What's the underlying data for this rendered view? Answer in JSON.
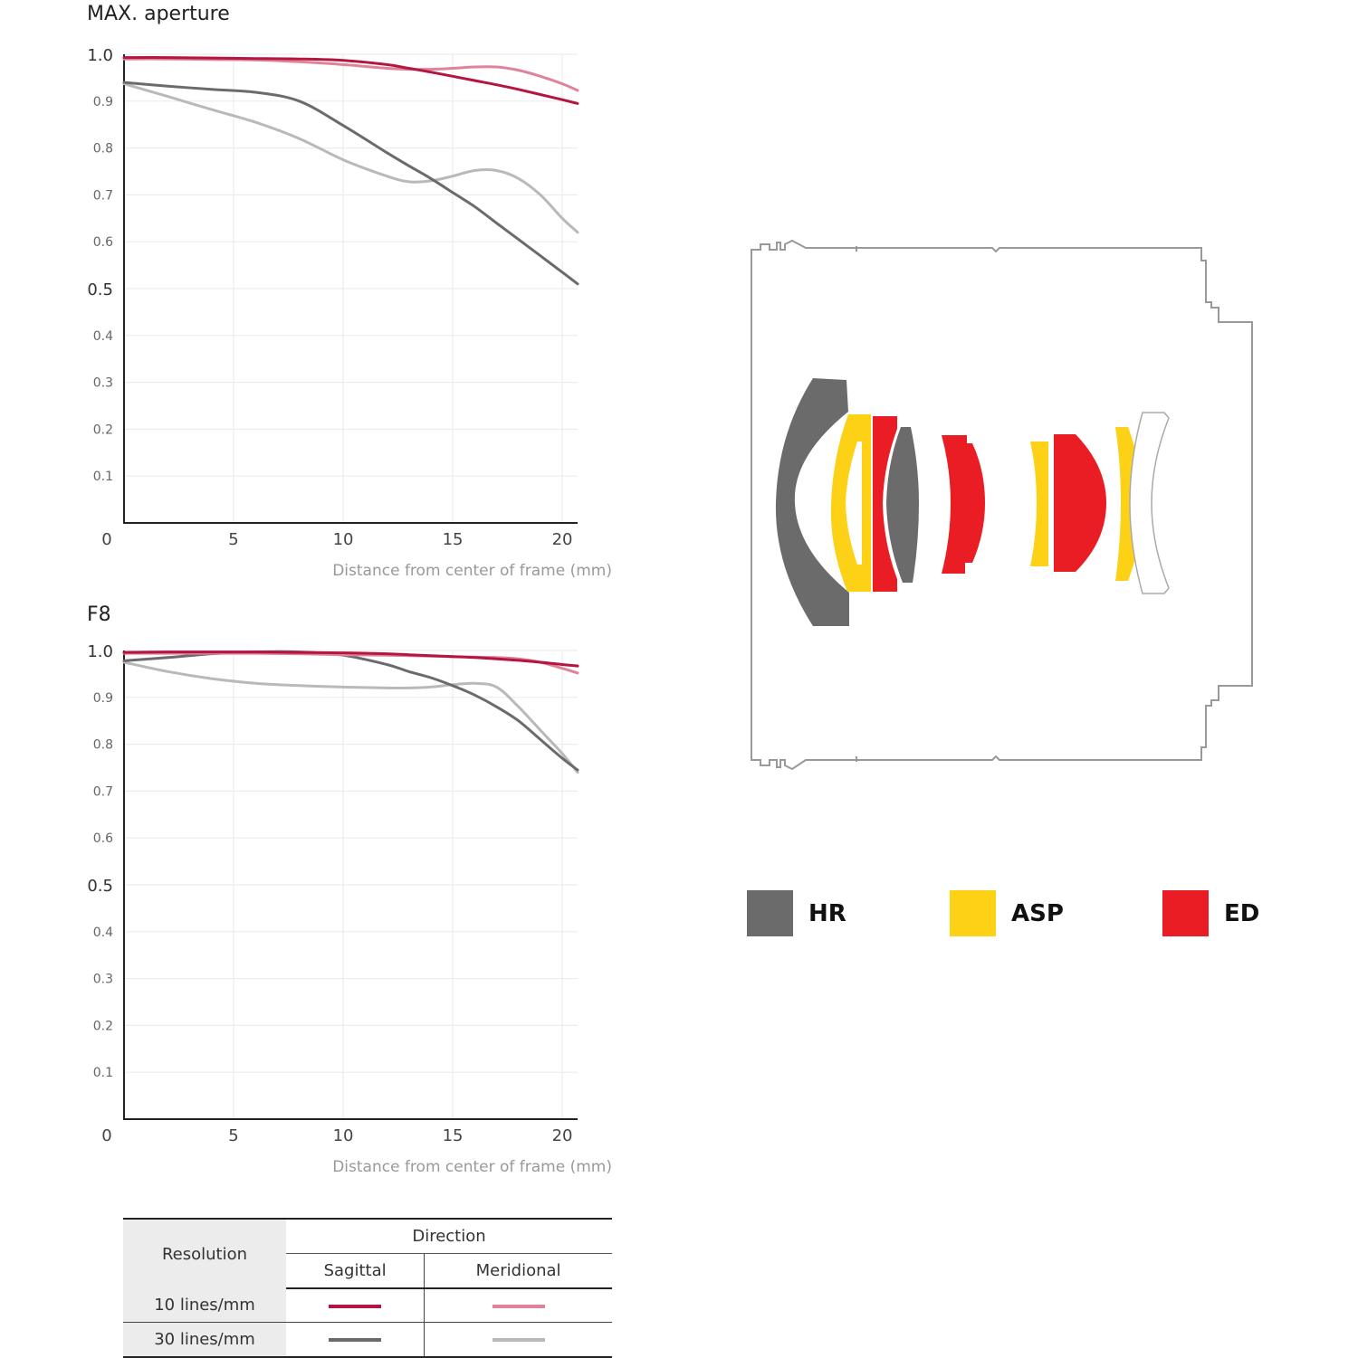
{
  "charts": [
    {
      "title": "MAX. aperture",
      "xlabel": "Distance from center of frame (mm)",
      "x_ticks": [
        "0",
        "5",
        "10",
        "15",
        "20"
      ],
      "y_ticks": [
        "0.1",
        "0.2",
        "0.3",
        "0.4",
        "0.5",
        "0.6",
        "0.7",
        "0.8",
        "0.9",
        "1.0"
      ]
    },
    {
      "title": "F8",
      "xlabel": "Distance from center of frame (mm)",
      "x_ticks": [
        "0",
        "5",
        "10",
        "15",
        "20"
      ],
      "y_ticks": [
        "0.1",
        "0.2",
        "0.3",
        "0.4",
        "0.5",
        "0.6",
        "0.7",
        "0.8",
        "0.9",
        "1.0"
      ]
    }
  ],
  "chart_data": [
    {
      "type": "line",
      "title": "MAX. aperture",
      "xlabel": "Distance from center of frame (mm)",
      "ylabel": "",
      "xlim": [
        0,
        20.7
      ],
      "ylim": [
        0,
        1.0
      ],
      "grid": true,
      "x": [
        0,
        2,
        4,
        6,
        8,
        10,
        12,
        13,
        14,
        15,
        16,
        17,
        18,
        19,
        20,
        20.7
      ],
      "series": [
        {
          "name": "Sagittal 10 lines/mm",
          "color": "#b5153f",
          "y": [
            0.993,
            0.993,
            0.992,
            0.991,
            0.99,
            0.987,
            0.978,
            0.97,
            0.962,
            0.953,
            0.944,
            0.935,
            0.925,
            0.914,
            0.903,
            0.895
          ]
        },
        {
          "name": "Meridional 10 lines/mm",
          "color": "#e0829a",
          "y": [
            0.99,
            0.99,
            0.989,
            0.988,
            0.984,
            0.978,
            0.97,
            0.968,
            0.968,
            0.97,
            0.973,
            0.973,
            0.966,
            0.953,
            0.937,
            0.923
          ]
        },
        {
          "name": "Sagittal 30 lines/mm",
          "color": "#6b6b6b",
          "y": [
            0.94,
            0.932,
            0.925,
            0.919,
            0.9,
            0.848,
            0.79,
            0.762,
            0.735,
            0.705,
            0.675,
            0.64,
            0.605,
            0.57,
            0.535,
            0.51
          ]
        },
        {
          "name": "Meridional 30 lines/mm",
          "color": "#b9b9b9",
          "y": [
            0.937,
            0.91,
            0.882,
            0.855,
            0.82,
            0.775,
            0.74,
            0.728,
            0.73,
            0.74,
            0.752,
            0.752,
            0.735,
            0.7,
            0.65,
            0.62
          ]
        }
      ]
    },
    {
      "type": "line",
      "title": "F8",
      "xlabel": "Distance from center of frame (mm)",
      "ylabel": "",
      "xlim": [
        0,
        20.7
      ],
      "ylim": [
        0,
        1.0
      ],
      "grid": true,
      "x": [
        0,
        2,
        4,
        6,
        8,
        10,
        12,
        13,
        14,
        15,
        16,
        17,
        18,
        19,
        20,
        20.7
      ],
      "series": [
        {
          "name": "Sagittal 10 lines/mm",
          "color": "#b5153f",
          "y": [
            0.996,
            0.997,
            0.997,
            0.997,
            0.996,
            0.995,
            0.993,
            0.991,
            0.989,
            0.987,
            0.985,
            0.982,
            0.979,
            0.975,
            0.97,
            0.967
          ]
        },
        {
          "name": "Meridional 10 lines/mm",
          "color": "#e0829a",
          "y": [
            0.994,
            0.994,
            0.994,
            0.994,
            0.993,
            0.991,
            0.99,
            0.989,
            0.988,
            0.987,
            0.986,
            0.985,
            0.982,
            0.975,
            0.962,
            0.952
          ]
        },
        {
          "name": "Sagittal 30 lines/mm",
          "color": "#6b6b6b",
          "y": [
            0.978,
            0.985,
            0.993,
            0.997,
            0.997,
            0.99,
            0.97,
            0.955,
            0.942,
            0.925,
            0.905,
            0.88,
            0.85,
            0.81,
            0.77,
            0.745
          ]
        },
        {
          "name": "Meridional 30 lines/mm",
          "color": "#b9b9b9",
          "y": [
            0.975,
            0.955,
            0.94,
            0.93,
            0.925,
            0.922,
            0.92,
            0.92,
            0.922,
            0.927,
            0.93,
            0.922,
            0.88,
            0.83,
            0.78,
            0.74
          ]
        }
      ]
    }
  ],
  "legend": [
    {
      "label": "HR",
      "color": "#6b6b6b"
    },
    {
      "label": "ASP",
      "color": "#fcd116"
    },
    {
      "label": "ED",
      "color": "#ea1c24"
    }
  ],
  "table": {
    "resolution_header": "Resolution",
    "direction_header": "Direction",
    "sagittal": "Sagittal",
    "meridional": "Meridional",
    "rows": [
      {
        "label": "10 lines/mm",
        "sagittal_color": "#b5153f",
        "meridional_color": "#e0829a"
      },
      {
        "label": "30 lines/mm",
        "sagittal_color": "#6b6b6b",
        "meridional_color": "#b9b9b9"
      }
    ]
  }
}
